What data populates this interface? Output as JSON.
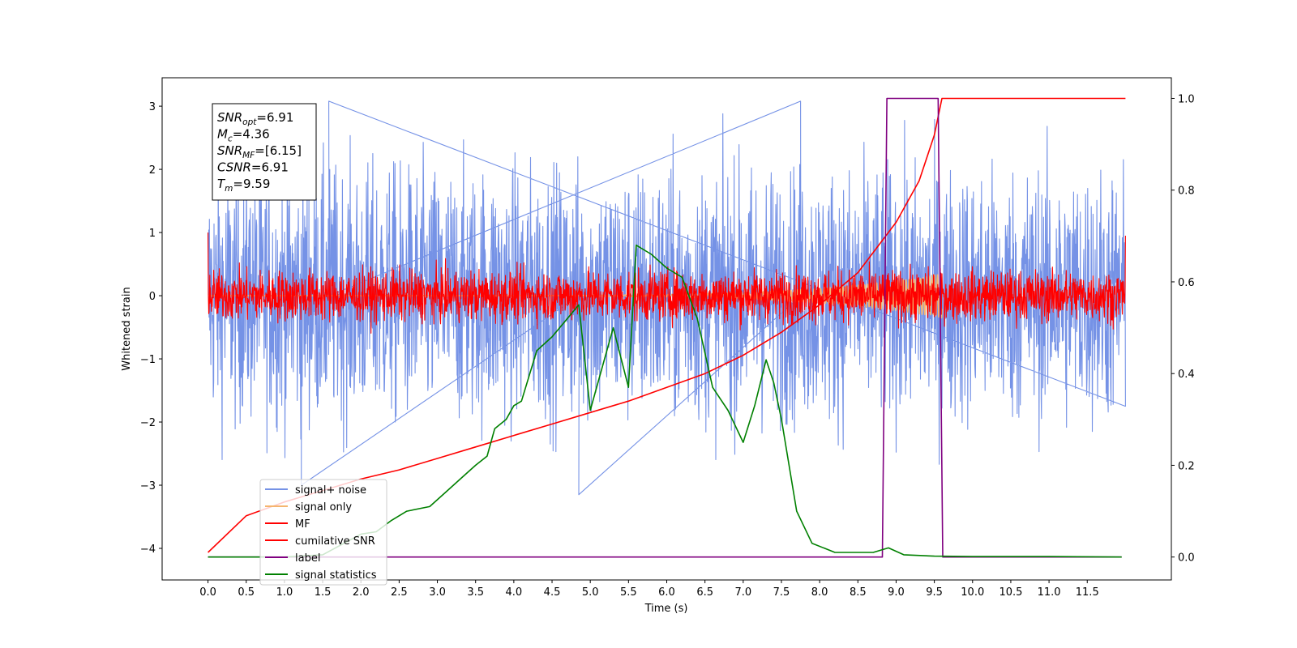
{
  "chart_data": {
    "type": "line",
    "xlabel": "Time (s)",
    "ylabel": "Whitened strain",
    "xlim": [
      -0.6,
      12.6
    ],
    "ylim": [
      -4.5,
      3.45
    ],
    "ylim_right": [
      -0.05,
      1.045
    ],
    "x_ticks": [
      0.0,
      0.5,
      1.0,
      1.5,
      2.0,
      2.5,
      3.0,
      3.5,
      4.0,
      4.5,
      5.0,
      5.5,
      6.0,
      6.5,
      7.0,
      7.5,
      8.0,
      8.5,
      9.0,
      9.5,
      10.0,
      10.5,
      11.0,
      11.5
    ],
    "x_tick_labels": [
      "0.0",
      "0.5",
      "1.0",
      "1.5",
      "2.0",
      "2.5",
      "3.0",
      "3.5",
      "4.0",
      "4.5",
      "5.0",
      "5.5",
      "6.0",
      "6.5",
      "7.0",
      "7.5",
      "8.0",
      "8.5",
      "9.0",
      "9.5",
      "10.0",
      "10.5",
      "11.0",
      "11.5"
    ],
    "y_ticks": [
      -4,
      -3,
      -2,
      -1,
      0,
      1,
      2,
      3
    ],
    "y_tick_labels": [
      "−4",
      "−3",
      "−2",
      "−1",
      "0",
      "1",
      "2",
      "3"
    ],
    "y_right_ticks": [
      0.0,
      0.2,
      0.4,
      0.6,
      0.8,
      1.0
    ],
    "y_right_tick_labels": [
      "0.0",
      "0.2",
      "0.4",
      "0.6",
      "0.8",
      "1.0"
    ],
    "legend_placement": "lower-left",
    "grid": false,
    "annotation": [
      {
        "main": "SNR",
        "sub": "opt",
        "value": "=6.91"
      },
      {
        "main": "M",
        "sub": "c",
        "value": "=4.36"
      },
      {
        "main": "SNR",
        "sub": "MF",
        "value": "=[6.15]"
      },
      {
        "main": "CSNR",
        "sub": "",
        "value": "=6.91"
      },
      {
        "main": "T",
        "sub": "m",
        "value": "=9.59"
      }
    ],
    "series": [
      {
        "name": "signal+ noise",
        "color": "#7592e6",
        "axis": "left",
        "style": "noise",
        "x_range": [
          0.0,
          12.0
        ],
        "y_center": 0.0,
        "y_amplitude": 1.0,
        "y_extremes": [
          -3.15,
          3.08
        ]
      },
      {
        "name": "signal only",
        "color": "#f5b56f",
        "axis": "left",
        "style": "chirp",
        "x_range": [
          0.0,
          9.6
        ],
        "y_max_amplitude": 0.35
      },
      {
        "name": "MF",
        "color": "#ff0000",
        "axis": "left",
        "style": "noise",
        "x_range": [
          0.0,
          12.0
        ],
        "y_center": 0.0,
        "y_amplitude": 0.2,
        "y_edge_values": [
          1.0,
          0.95
        ]
      },
      {
        "name": "cumilative SNR",
        "color": "#ff0000",
        "axis": "right",
        "x": [
          0.0,
          0.5,
          1.0,
          1.5,
          2.0,
          2.5,
          3.0,
          3.5,
          4.0,
          4.5,
          5.0,
          5.5,
          6.0,
          6.5,
          7.0,
          7.5,
          8.0,
          8.5,
          9.0,
          9.3,
          9.5,
          9.6,
          10.0,
          11.0,
          12.0
        ],
        "values": [
          0.01,
          0.09,
          0.12,
          0.145,
          0.17,
          0.19,
          0.215,
          0.24,
          0.265,
          0.29,
          0.315,
          0.34,
          0.37,
          0.4,
          0.44,
          0.49,
          0.55,
          0.62,
          0.73,
          0.82,
          0.92,
          1.0,
          1.0,
          1.0,
          1.0
        ]
      },
      {
        "name": "label",
        "color": "#800080",
        "axis": "right",
        "x": [
          0.0,
          8.82,
          8.88,
          9.55,
          9.61,
          11.95
        ],
        "values": [
          0.0,
          0.0,
          1.0,
          1.0,
          0.0,
          0.0
        ]
      },
      {
        "name": "signal statistics",
        "color": "#008000",
        "axis": "right",
        "x": [
          0.0,
          0.5,
          1.0,
          1.5,
          2.0,
          2.2,
          2.4,
          2.6,
          2.9,
          3.1,
          3.3,
          3.5,
          3.65,
          3.75,
          3.9,
          4.0,
          4.1,
          4.3,
          4.5,
          4.7,
          4.85,
          5.0,
          5.1,
          5.3,
          5.5,
          5.6,
          5.8,
          6.0,
          6.2,
          6.4,
          6.6,
          6.8,
          7.0,
          7.15,
          7.3,
          7.4,
          7.5,
          7.7,
          7.9,
          8.2,
          8.5,
          8.7,
          8.9,
          9.1,
          9.5,
          10.0,
          11.0,
          11.95
        ],
        "values": [
          0.0,
          0.0,
          0.0,
          0.005,
          0.05,
          0.055,
          0.08,
          0.1,
          0.11,
          0.14,
          0.17,
          0.2,
          0.22,
          0.28,
          0.3,
          0.33,
          0.34,
          0.45,
          0.48,
          0.52,
          0.55,
          0.32,
          0.38,
          0.5,
          0.37,
          0.68,
          0.66,
          0.63,
          0.61,
          0.52,
          0.37,
          0.32,
          0.25,
          0.33,
          0.43,
          0.38,
          0.3,
          0.1,
          0.03,
          0.01,
          0.01,
          0.01,
          0.02,
          0.005,
          0.002,
          0.001,
          0.001,
          0.0
        ]
      }
    ]
  }
}
